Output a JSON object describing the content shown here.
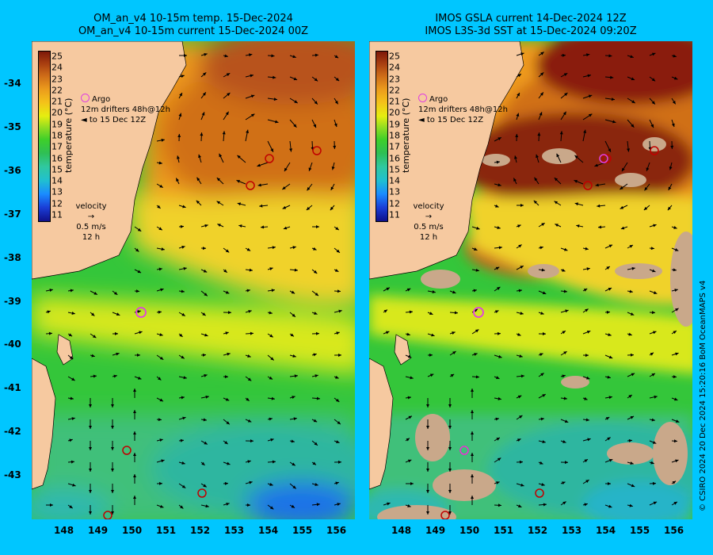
{
  "left_panel": {
    "title_line1": "OM_an_v4  10-15m temp. 15-Dec-2024",
    "title_line2": "OM_an_v4  10-15m current 15-Dec-2024 00Z"
  },
  "right_panel": {
    "title_line1": "IMOS GSLA current 14-Dec-2024 12Z",
    "title_line2": "IMOS L3S-3d SST at 15-Dec-2024 09:20Z"
  },
  "colorbar": {
    "label": "temperature (°C)",
    "ticks": [
      "25",
      "24",
      "23",
      "22",
      "21",
      "20",
      "19",
      "18",
      "17",
      "16",
      "15",
      "14",
      "13",
      "12",
      "11"
    ]
  },
  "legend": {
    "argo": "Argo",
    "drifters": "12m  drifters 48h@12h",
    "to_date": "to 15 Dec 12Z"
  },
  "velocity_key": {
    "title": "velocity",
    "speed": "0.5 m/s",
    "duration": "12 h"
  },
  "lat_ticks": [
    "-34",
    "-35",
    "-36",
    "-37",
    "-38",
    "-39",
    "-40",
    "-41",
    "-42",
    "-43"
  ],
  "lon_ticks": [
    "148",
    "149",
    "150",
    "151",
    "152",
    "153",
    "154",
    "155",
    "156"
  ],
  "credit": "© CSIRO 2024   20 Dec 2024 15:20:16 BoM OceanMAPS v4",
  "colors": {
    "background": "#00c6ff",
    "land": "#f6c9a0",
    "argo_marker": "#e040e0",
    "drifter_marker": "#c00000"
  }
}
